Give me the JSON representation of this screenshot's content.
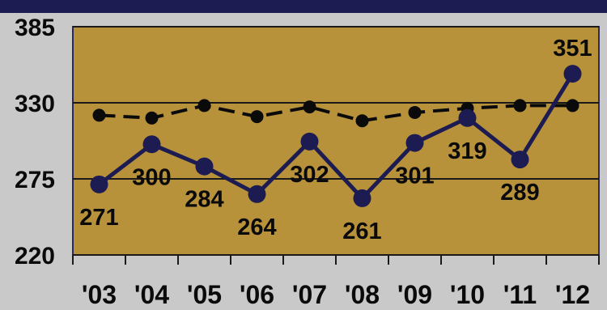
{
  "colors": {
    "background": "#c9c9c9",
    "top_band": "#1c1c52",
    "plot_fill": "#b8923a",
    "frame": "#2a2a5a",
    "gridline": "#1a1a1a",
    "series_main": "#1c1c52",
    "series_ref": "#0a0a0a",
    "text": "#0a0a0a"
  },
  "chart_data": {
    "type": "line",
    "categories": [
      "'03",
      "'04",
      "'05",
      "'06",
      "'07",
      "'08",
      "'09",
      "'10",
      "'11",
      "'12"
    ],
    "ylim": [
      220,
      385
    ],
    "yticks": [
      "220",
      "275",
      "330",
      "385"
    ],
    "grid": "horizontal",
    "series": [
      {
        "style": "solid",
        "values": [
          271,
          300,
          284,
          264,
          302,
          261,
          301,
          319,
          289,
          351
        ],
        "labels": [
          "271",
          "300",
          "284",
          "264",
          "302",
          "261",
          "301",
          "319",
          "289",
          "351"
        ],
        "label_positions": [
          "below",
          "below",
          "below",
          "below",
          "below",
          "below",
          "below",
          "below",
          "below",
          "above"
        ]
      },
      {
        "style": "dashed",
        "values": [
          321,
          319,
          328,
          320,
          327,
          317,
          323,
          326,
          328,
          328
        ]
      }
    ]
  }
}
